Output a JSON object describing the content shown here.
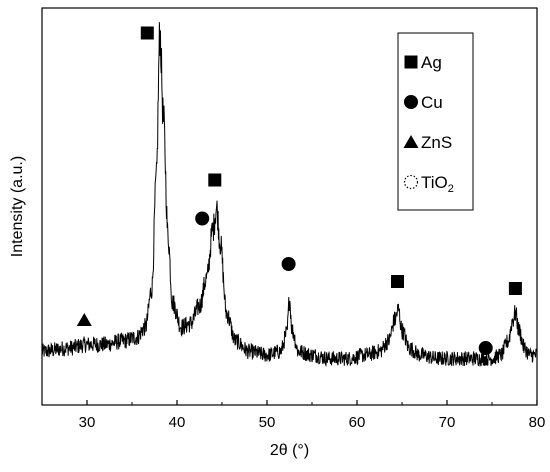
{
  "chart_data": {
    "type": "line",
    "xlabel": "2θ (°)",
    "ylabel": "Intensity (a.u.)",
    "xlim": [
      25,
      80
    ],
    "ylim": [
      0,
      1
    ],
    "xticks": [
      "30",
      "40",
      "50",
      "60",
      "70",
      "80"
    ],
    "grid": false,
    "legend_position": "top-right",
    "series": [
      {
        "x": [
          25,
          28,
          30,
          32,
          34,
          35.5,
          36.5,
          37.2,
          37.7,
          38.1,
          38.5,
          39,
          39.5,
          40.5,
          41.5,
          42.5,
          43.3,
          44,
          44.4,
          44.8,
          45.5,
          46.5,
          48,
          50,
          51.5,
          52.2,
          52.5,
          52.8,
          53.5,
          55,
          57,
          59,
          61,
          62.5,
          63.5,
          64.2,
          64.6,
          65,
          65.8,
          67,
          69,
          71,
          73,
          75,
          76,
          76.8,
          77.3,
          77.6,
          78,
          78.6,
          79.2,
          80
        ],
        "values": [
          0.09,
          0.1,
          0.11,
          0.11,
          0.12,
          0.13,
          0.16,
          0.27,
          0.58,
          1.0,
          0.75,
          0.42,
          0.23,
          0.16,
          0.17,
          0.22,
          0.3,
          0.44,
          0.5,
          0.4,
          0.2,
          0.12,
          0.09,
          0.08,
          0.09,
          0.14,
          0.24,
          0.15,
          0.09,
          0.08,
          0.07,
          0.07,
          0.08,
          0.09,
          0.12,
          0.18,
          0.21,
          0.15,
          0.1,
          0.08,
          0.07,
          0.07,
          0.07,
          0.07,
          0.08,
          0.12,
          0.18,
          0.2,
          0.15,
          0.1,
          0.08,
          0.08
        ]
      }
    ],
    "markers": [
      {
        "symbol": "square",
        "x": 36.7,
        "y": 1.0,
        "phase": "Ag"
      },
      {
        "symbol": "square",
        "x": 44.2,
        "y": 0.58,
        "phase": "Ag"
      },
      {
        "symbol": "square",
        "x": 64.5,
        "y": 0.29,
        "phase": "Ag"
      },
      {
        "symbol": "square",
        "x": 77.6,
        "y": 0.27,
        "phase": "Ag"
      },
      {
        "symbol": "circle",
        "x": 42.8,
        "y": 0.47,
        "phase": "Cu"
      },
      {
        "symbol": "circle",
        "x": 52.4,
        "y": 0.34,
        "phase": "Cu"
      },
      {
        "symbol": "circle",
        "x": 74.3,
        "y": 0.1,
        "phase": "Cu"
      },
      {
        "symbol": "triangle",
        "x": 29.7,
        "y": 0.18,
        "phase": "ZnS"
      }
    ],
    "legend": [
      {
        "symbol": "square",
        "label": "Ag",
        "sub": ""
      },
      {
        "symbol": "circle",
        "label": "Cu",
        "sub": ""
      },
      {
        "symbol": "triangle",
        "label": "ZnS",
        "sub": ""
      },
      {
        "symbol": "dotted-circle",
        "label": "TiO",
        "sub": "2"
      }
    ],
    "colors": {
      "line": "#000000",
      "markers": "#000000",
      "background": "#ffffff"
    }
  }
}
